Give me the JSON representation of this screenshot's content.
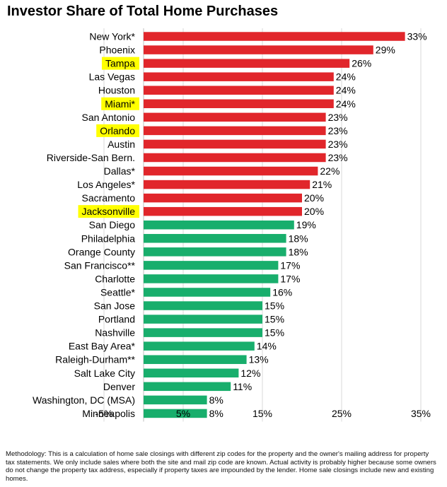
{
  "chart_data": {
    "type": "bar",
    "orientation": "horizontal",
    "title": "Investor Share of Total Home Purchases",
    "categories": [
      "New York*",
      "Phoenix",
      "Tampa",
      "Las Vegas",
      "Houston",
      "Miami*",
      "San Antonio",
      "Orlando",
      "Austin",
      "Riverside-San Bern.",
      "Dallas*",
      "Los Angeles*",
      "Sacramento",
      "Jacksonville",
      "San Diego",
      "Philadelphia",
      "Orange County",
      "San Francisco**",
      "Charlotte",
      "Seattle*",
      "San Jose",
      "Portland",
      "Nashville",
      "East Bay Area*",
      "Raleigh-Durham**",
      "Salt Lake City",
      "Denver",
      "Washington, DC (MSA)",
      "Minneapolis"
    ],
    "values": [
      33,
      29,
      26,
      24,
      24,
      24,
      23,
      23,
      23,
      23,
      22,
      21,
      20,
      20,
      19,
      18,
      18,
      17,
      17,
      16,
      15,
      15,
      15,
      14,
      13,
      12,
      11,
      8,
      8
    ],
    "value_labels": [
      "33%",
      "29%",
      "26%",
      "24%",
      "24%",
      "24%",
      "23%",
      "23%",
      "23%",
      "23%",
      "22%",
      "21%",
      "20%",
      "20%",
      "19%",
      "18%",
      "18%",
      "17%",
      "17%",
      "16%",
      "15%",
      "15%",
      "15%",
      "14%",
      "13%",
      "12%",
      "11%",
      "8%",
      "8%"
    ],
    "highlighted": [
      "Tampa",
      "Miami*",
      "Orlando",
      "Jacksonville"
    ],
    "red_count": 14,
    "xlim": [
      -5,
      35
    ],
    "xticks": [
      -5,
      5,
      15,
      25,
      35
    ],
    "xtick_labels": [
      "-5%",
      "5%",
      "15%",
      "25%",
      "35%"
    ],
    "grid": "vertical",
    "colors": {
      "high": "#e1262b",
      "low": "#18ae6c",
      "highlight": "#ffff00",
      "grid": "#d9d9d9",
      "axis": "#bfbfbf"
    }
  },
  "methodology": "Methodology: This is a calculation of home sale closings with different zip codes for the property and the owner's mailing address for property tax statements. We only include sales where both the site and mail zip code are known. Actual activity is probably higher because some owners do not change the property tax address, especially if property taxes are impounded by the lender. Home sale closings include new and existing homes."
}
